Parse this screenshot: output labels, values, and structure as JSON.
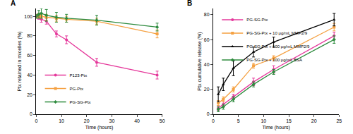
{
  "chart_data": [
    {
      "type": "line",
      "title": "A",
      "x_label": "Time (hours)",
      "y_label": "Ptx retained in micelles (%)",
      "xlim": [
        0,
        50
      ],
      "xticks": [
        0,
        10,
        20,
        30,
        40,
        50
      ],
      "ylim": [
        0,
        108
      ],
      "yticks": [
        0,
        20,
        40,
        60,
        80,
        100
      ],
      "grid": false,
      "legend": "lower left",
      "series": [
        {
          "name": "P123-Ptx",
          "color": "#e5389b",
          "marker": "circle",
          "x": [
            0,
            1,
            2,
            4,
            8,
            12,
            24,
            48
          ],
          "values": [
            100,
            99,
            97,
            95,
            82,
            76,
            53,
            40
          ],
          "errors": [
            2,
            2,
            3,
            3,
            3,
            4,
            4,
            4
          ]
        },
        {
          "name": "PG-Ptx",
          "color": "#f5a142",
          "marker": "square",
          "x": [
            0,
            1,
            2,
            4,
            8,
            12,
            24,
            48
          ],
          "values": [
            100,
            101,
            100,
            99,
            98,
            97,
            95,
            82
          ],
          "errors": [
            2,
            2,
            2,
            3,
            3,
            3,
            3,
            4
          ]
        },
        {
          "name": "PG-SG-Ptx",
          "color": "#2e8b3e",
          "marker": "diamond",
          "x": [
            0,
            1,
            2,
            4,
            8,
            12,
            24,
            48
          ],
          "values": [
            100,
            102,
            103,
            101,
            99,
            98,
            96,
            89
          ],
          "errors": [
            2,
            4,
            5,
            6,
            5,
            4,
            5,
            4
          ]
        }
      ]
    },
    {
      "type": "line",
      "title": "B",
      "x_label": "Time (hours)",
      "y_label": "Ptx cumulative release (%)",
      "xlim": [
        0,
        25
      ],
      "xticks": [
        0,
        5,
        10,
        15,
        20,
        25
      ],
      "ylim": [
        0,
        85
      ],
      "yticks": [
        0,
        20,
        40,
        60,
        80
      ],
      "grid": false,
      "legend": "upper left",
      "series": [
        {
          "name": "PG-SG-Ptx",
          "color": "#e5389b",
          "marker": "circle",
          "x": [
            1,
            2,
            4,
            8,
            12,
            24
          ],
          "values": [
            5,
            8,
            14,
            26,
            36,
            63
          ],
          "errors": [
            2,
            2,
            2,
            3,
            3,
            3
          ]
        },
        {
          "name": "PG-SG-Ptx + 10 μg/mL MMP2/9",
          "color": "#f5a142",
          "marker": "square",
          "x": [
            1,
            2,
            4,
            8,
            12,
            24
          ],
          "values": [
            9,
            12,
            20,
            39,
            45,
            70
          ],
          "errors": [
            2,
            2,
            2,
            2,
            2,
            3
          ]
        },
        {
          "name": "PG-SG-Ptx + 100 μg/mL MMP2/9",
          "color": "#000000",
          "marker": "triangle-up",
          "x": [
            1,
            2,
            4,
            8,
            12,
            24
          ],
          "values": [
            16,
            24,
            37,
            50,
            58,
            76
          ],
          "errors": [
            6,
            5,
            6,
            4,
            4,
            5
          ]
        },
        {
          "name": "PG-SG-Ptx + 100 μg/mL BSA",
          "color": "#2e8b3e",
          "marker": "diamond",
          "x": [
            1,
            2,
            4,
            8,
            12,
            24
          ],
          "values": [
            4,
            6,
            12,
            24,
            34,
            60
          ],
          "errors": [
            2,
            2,
            2,
            2,
            2,
            3
          ]
        }
      ]
    }
  ]
}
